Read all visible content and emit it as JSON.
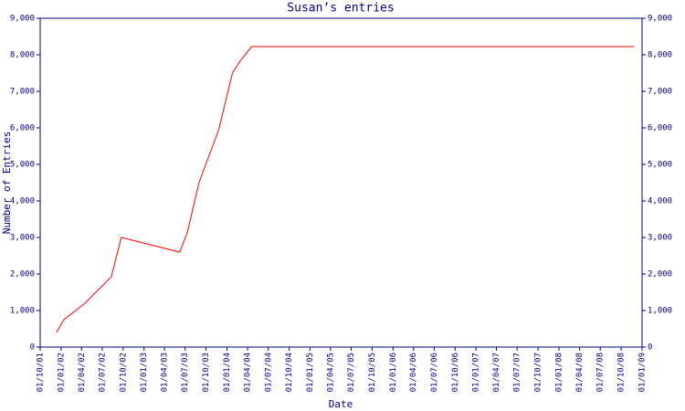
{
  "chart_data": {
    "type": "line",
    "title": "Susan’s entries",
    "x_label": "Date",
    "y_label": "Number of Entries",
    "color": "#ff0000",
    "axis_color": "#000080",
    "x": [
      "2001-12-12",
      "2002-01-13",
      "2002-04-12",
      "2002-08-10",
      "2002-09-23",
      "2003-06-07",
      "2003-07-10",
      "2003-08-31",
      "2003-11-26",
      "2004-01-25",
      "2004-02-27",
      "2004-04-19",
      "2008-11-27"
    ],
    "values": [
      400,
      750,
      1175,
      1925,
      3000,
      2600,
      3125,
      4500,
      5950,
      7500,
      7825,
      8225,
      8225
    ],
    "xlim": [
      "2001-10-01",
      "2009-01-01"
    ],
    "xticks": [
      {
        "value": "2001-10-01",
        "label": "01/10/01"
      },
      {
        "value": "2002-01-01",
        "label": "01/01/02"
      },
      {
        "value": "2002-04-01",
        "label": "01/04/02"
      },
      {
        "value": "2002-07-01",
        "label": "01/07/02"
      },
      {
        "value": "2002-10-01",
        "label": "01/10/02"
      },
      {
        "value": "2003-01-01",
        "label": "01/01/03"
      },
      {
        "value": "2003-04-01",
        "label": "01/04/03"
      },
      {
        "value": "2003-07-01",
        "label": "01/07/03"
      },
      {
        "value": "2003-10-01",
        "label": "01/10/03"
      },
      {
        "value": "2004-01-01",
        "label": "01/01/04"
      },
      {
        "value": "2004-04-01",
        "label": "01/04/04"
      },
      {
        "value": "2004-07-01",
        "label": "01/07/04"
      },
      {
        "value": "2004-10-01",
        "label": "01/10/04"
      },
      {
        "value": "2005-01-01",
        "label": "01/01/05"
      },
      {
        "value": "2005-04-01",
        "label": "01/04/05"
      },
      {
        "value": "2005-07-01",
        "label": "01/07/05"
      },
      {
        "value": "2005-10-01",
        "label": "01/10/05"
      },
      {
        "value": "2006-01-01",
        "label": "01/01/06"
      },
      {
        "value": "2006-04-01",
        "label": "01/04/06"
      },
      {
        "value": "2006-07-01",
        "label": "01/07/06"
      },
      {
        "value": "2006-10-01",
        "label": "01/10/06"
      },
      {
        "value": "2007-01-01",
        "label": "01/01/07"
      },
      {
        "value": "2007-04-01",
        "label": "01/04/07"
      },
      {
        "value": "2007-07-01",
        "label": "01/07/07"
      },
      {
        "value": "2007-10-01",
        "label": "01/10/07"
      },
      {
        "value": "2008-01-01",
        "label": "01/01/08"
      },
      {
        "value": "2008-04-01",
        "label": "01/04/08"
      },
      {
        "value": "2008-07-01",
        "label": "01/07/08"
      },
      {
        "value": "2008-10-01",
        "label": "01/10/08"
      },
      {
        "value": "2009-01-01",
        "label": "01/01/09"
      }
    ],
    "ylim": [
      0,
      9000
    ],
    "yticks": [
      0,
      {
        "value": 1000,
        "label": "1,000"
      },
      {
        "value": 2000,
        "label": "2,000"
      },
      {
        "value": 3000,
        "label": "3,000"
      },
      {
        "value": 4000,
        "label": "4,000"
      },
      {
        "value": 5000,
        "label": "5,000"
      },
      {
        "value": 6000,
        "label": "6,000"
      },
      {
        "value": 7000,
        "label": "7,000"
      },
      {
        "value": 8000,
        "label": "8,000"
      },
      {
        "value": 9000,
        "label": "9,000"
      }
    ],
    "grid": false
  }
}
